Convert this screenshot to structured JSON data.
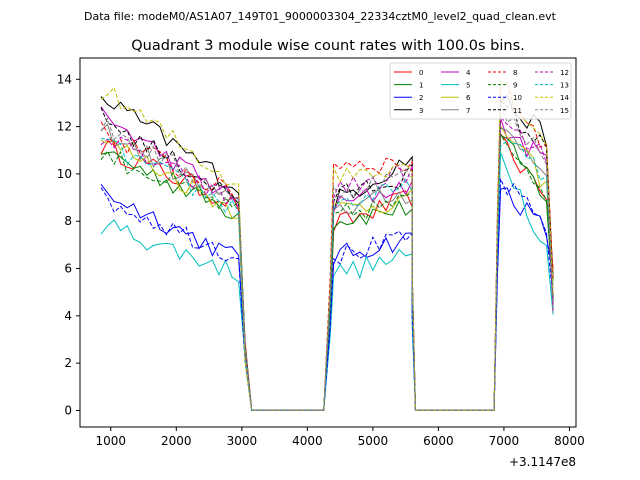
{
  "header": {
    "file_label": "Data file: modeM0/AS1A07_149T01_9000003304_22334cztM0_level2_quad_clean.evt"
  },
  "chart_data": {
    "type": "line",
    "title": "Quadrant 3 module wise count rates with 100.0s bins.",
    "xlabel": "",
    "ylabel": "",
    "x_offset_label": "+3.1147e8",
    "xlim": [
      530,
      8100
    ],
    "ylim": [
      -0.7,
      14.9
    ],
    "xticks": [
      1000,
      2000,
      3000,
      4000,
      5000,
      6000,
      7000,
      8000
    ],
    "xtick_labels": [
      "1000",
      "2000",
      "3000",
      "4000",
      "5000",
      "6000",
      "7000",
      "8000"
    ],
    "yticks": [
      0,
      2,
      4,
      6,
      8,
      10,
      12,
      14
    ],
    "ytick_labels": [
      "0",
      "2",
      "4",
      "6",
      "8",
      "10",
      "12",
      "14"
    ],
    "segments": [
      {
        "x_start": 850,
        "x_end": 2950
      },
      {
        "x_start": 4400,
        "x_end": 5550
      },
      {
        "x_start": 6950,
        "x_end": 7650
      }
    ],
    "gaps": [
      {
        "x_start": 3150,
        "x_end": 4250
      },
      {
        "x_start": 5650,
        "x_end": 6850
      }
    ],
    "series": [
      {
        "name": "0",
        "color": "#ff0000",
        "dash": false,
        "seg1": [
          11.2,
          8.7
        ],
        "seg2": [
          7.8,
          9.0
        ],
        "seg3": [
          11.3,
          9.2
        ]
      },
      {
        "name": "1",
        "color": "#008000",
        "dash": false,
        "seg1": [
          11.0,
          8.3
        ],
        "seg2": [
          8.0,
          8.6
        ],
        "seg3": [
          11.5,
          9.0
        ]
      },
      {
        "name": "2",
        "color": "#0000ff",
        "dash": false,
        "seg1": [
          9.3,
          6.4
        ],
        "seg2": [
          6.5,
          7.3
        ],
        "seg3": [
          9.5,
          7.6
        ]
      },
      {
        "name": "3",
        "color": "#000000",
        "dash": false,
        "seg1": [
          13.3,
          9.4
        ],
        "seg2": [
          8.8,
          10.7
        ],
        "seg3": [
          13.2,
          11.6
        ]
      },
      {
        "name": "4",
        "color": "#bf00bf",
        "dash": false,
        "seg1": [
          12.5,
          8.8
        ],
        "seg2": [
          8.6,
          9.6
        ],
        "seg3": [
          12.0,
          10.5
        ]
      },
      {
        "name": "5",
        "color": "#00bfbf",
        "dash": false,
        "seg1": [
          7.9,
          5.8
        ],
        "seg2": [
          5.8,
          6.5
        ],
        "seg3": [
          11.0,
          6.8
        ]
      },
      {
        "name": "6",
        "color": "#bfbf00",
        "dash": false,
        "seg1": [
          11.5,
          8.4
        ],
        "seg2": [
          8.5,
          8.9
        ],
        "seg3": [
          12.1,
          9.5
        ]
      },
      {
        "name": "7",
        "color": "#808080",
        "dash": false,
        "seg1": [
          11.9,
          8.6
        ],
        "seg2": [
          8.5,
          9.2
        ],
        "seg3": [
          12.0,
          10.0
        ]
      },
      {
        "name": "8",
        "color": "#ff0000",
        "dash": true,
        "seg1": [
          11.8,
          9.0
        ],
        "seg2": [
          10.5,
          10.4
        ],
        "seg3": [
          13.8,
          11.2
        ]
      },
      {
        "name": "9",
        "color": "#008000",
        "dash": true,
        "seg1": [
          10.9,
          8.4
        ],
        "seg2": [
          8.2,
          8.9
        ],
        "seg3": [
          11.7,
          9.3
        ]
      },
      {
        "name": "10",
        "color": "#0000ff",
        "dash": true,
        "seg1": [
          9.0,
          6.5
        ],
        "seg2": [
          6.5,
          7.3
        ],
        "seg3": [
          9.7,
          7.8
        ]
      },
      {
        "name": "11",
        "color": "#000000",
        "dash": true,
        "seg1": [
          12.4,
          8.9
        ],
        "seg2": [
          9.0,
          10.0
        ],
        "seg3": [
          12.9,
          11.0
        ]
      },
      {
        "name": "12",
        "color": "#bf00bf",
        "dash": true,
        "seg1": [
          11.6,
          8.7
        ],
        "seg2": [
          9.3,
          10.1
        ],
        "seg3": [
          12.2,
          10.6
        ]
      },
      {
        "name": "13",
        "color": "#00bfbf",
        "dash": true,
        "seg1": [
          11.3,
          8.5
        ],
        "seg2": [
          8.7,
          9.4
        ],
        "seg3": [
          11.6,
          9.8
        ]
      },
      {
        "name": "14",
        "color": "#bfbf00",
        "dash": true,
        "seg1": [
          13.6,
          9.5
        ],
        "seg2": [
          9.9,
          10.5
        ],
        "seg3": [
          14.0,
          11.3
        ]
      },
      {
        "name": "15",
        "color": "#808080",
        "dash": true,
        "seg1": [
          12.1,
          8.8
        ],
        "seg2": [
          9.2,
          10.0
        ],
        "seg3": [
          12.6,
          10.8
        ]
      }
    ]
  }
}
